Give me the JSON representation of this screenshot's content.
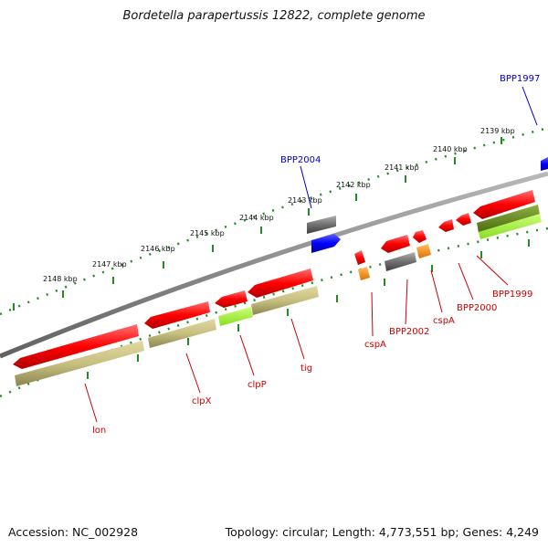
{
  "title": "Bordetella parapertussis 12822, complete genome",
  "footer": {
    "accession": "Accession: NC_002928",
    "summary": "Topology: circular; Length: 4,773,551 bp; Genes: 4,249"
  },
  "colors": {
    "backbone": "#808080",
    "ruler": "#228b22",
    "cds_forward": "#ff0000",
    "cds_reverse": "#ff0000",
    "rna_blue": "#0000ff",
    "pseudo_gray": "#707070",
    "orange": "#ff8c00",
    "khaki": "#c8c080",
    "lime": "#aaff33",
    "olive": "#6b8e23",
    "label_red": "#cc0000",
    "label_blue": "#0000cc"
  },
  "ruler": {
    "unit": "kbp",
    "ticks": [
      {
        "label": "2139 kbp"
      },
      {
        "label": "2140 kbp"
      },
      {
        "label": "2141 kbp"
      },
      {
        "label": "2142 kbp"
      },
      {
        "label": "2143 kbp"
      },
      {
        "label": "2144 kbp"
      },
      {
        "label": "2145 kbp"
      },
      {
        "label": "2146 kbp"
      },
      {
        "label": "2147 kbp"
      },
      {
        "label": "2148 kbp"
      }
    ]
  },
  "gene_labels": [
    {
      "name": "BPP1997",
      "color": "blue"
    },
    {
      "name": "BPP2004",
      "color": "blue"
    },
    {
      "name": "BPP1999",
      "color": "red"
    },
    {
      "name": "BPP2000",
      "color": "red"
    },
    {
      "name": "cspA",
      "color": "red"
    },
    {
      "name": "BPP2002",
      "color": "red"
    },
    {
      "name": "cspA",
      "color": "red"
    },
    {
      "name": "tig",
      "color": "red"
    },
    {
      "name": "clpP",
      "color": "red"
    },
    {
      "name": "clpX",
      "color": "red"
    },
    {
      "name": "lon",
      "color": "red"
    }
  ]
}
